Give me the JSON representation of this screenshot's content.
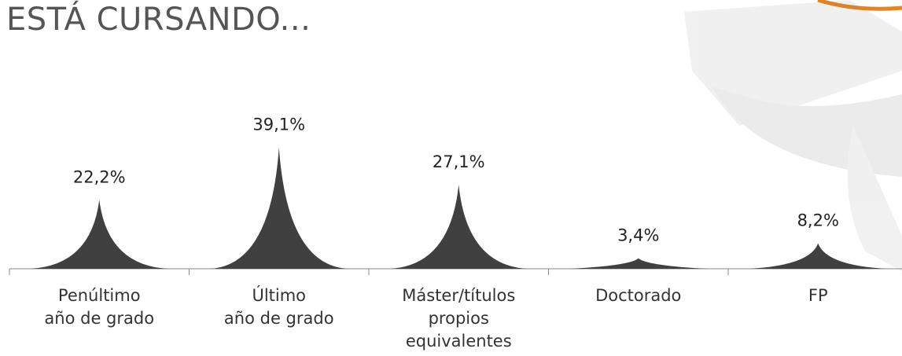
{
  "chart_data": {
    "type": "peak",
    "title": "ESTÁ CURSANDO...",
    "categories": [
      "Penúltimo\naño de grado",
      "Último\naño de grado",
      "Máster/títulos\npropios\nequivalentes",
      "Doctorado",
      "FP"
    ],
    "values": [
      22.2,
      39.1,
      27.1,
      3.4,
      8.2
    ],
    "value_labels": [
      "22,2%",
      "39,1%",
      "27,1%",
      "3,4%",
      "8,2%"
    ],
    "color": "#404040"
  }
}
